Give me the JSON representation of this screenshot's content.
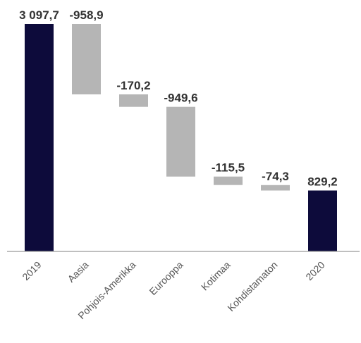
{
  "chart_data": {
    "type": "bar",
    "subtype": "waterfall",
    "categories": [
      "2019",
      "Aasia",
      "Pohjois-Amerikka",
      "Eurooppa",
      "Kotimaa",
      "Kohdistamaton",
      "2020"
    ],
    "values": [
      3097.7,
      -958.9,
      -170.2,
      -949.6,
      -115.5,
      -74.3,
      829.2
    ],
    "value_labels": [
      "3 097,7",
      "-958,9",
      "-170,2",
      "-949,6",
      "-115,5",
      "-74,3",
      "829,2"
    ],
    "bar_kinds": [
      "total",
      "delta",
      "delta",
      "delta",
      "delta",
      "delta",
      "total"
    ],
    "title": "",
    "xlabel": "",
    "ylabel": "",
    "ylim": [
      0,
      3097.7
    ],
    "grid": false,
    "legend": "none",
    "colors": {
      "total": "#0d0b3b",
      "delta": "#b5b5b5",
      "axis": "#aaaaaa",
      "text": "#333333",
      "tick": "#555555"
    }
  }
}
